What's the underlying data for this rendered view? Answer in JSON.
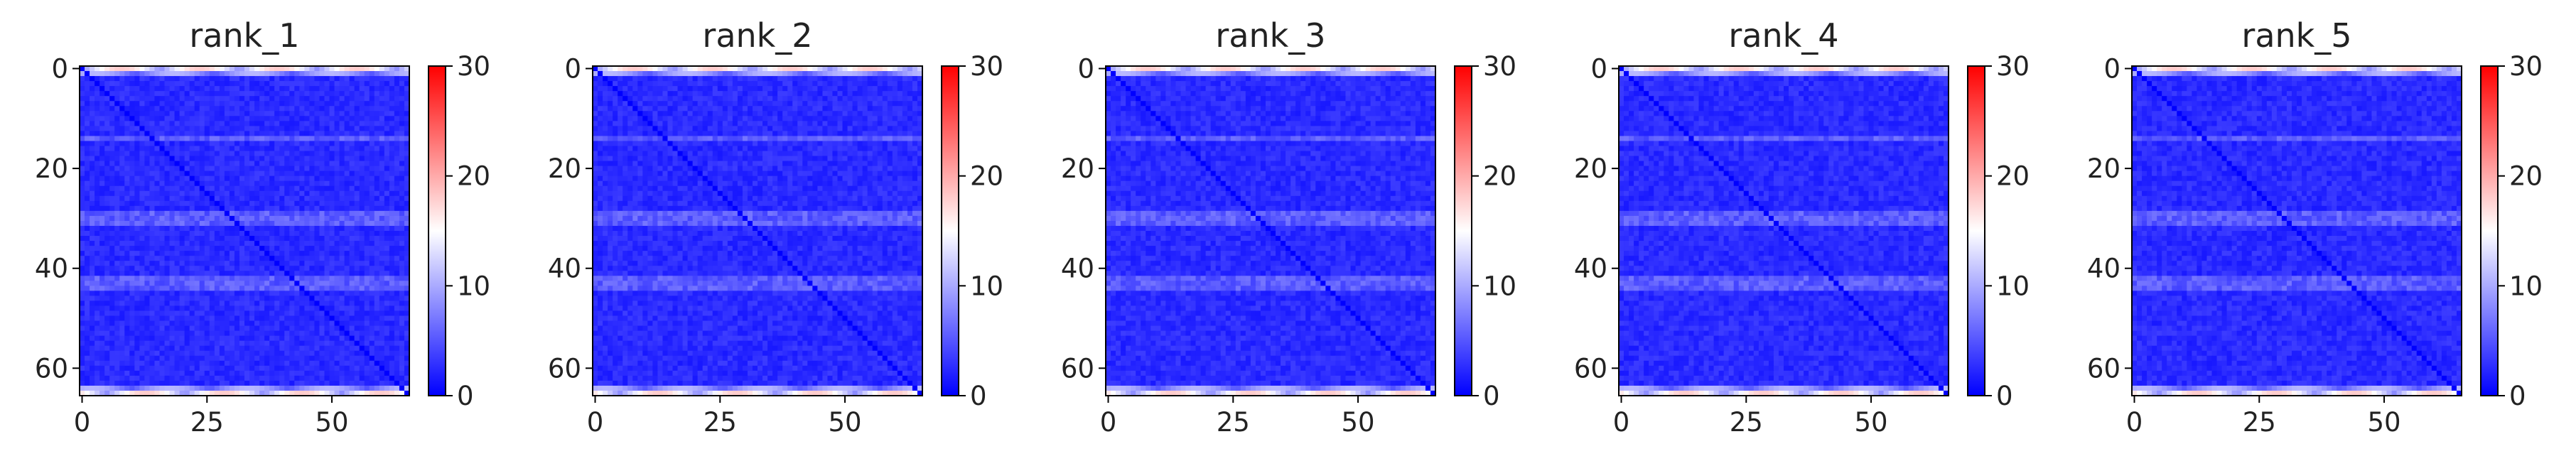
{
  "chart_data": [
    {
      "type": "heatmap",
      "title": "rank_1",
      "matrix_size": 66,
      "xticks": [
        0,
        25,
        50
      ],
      "yticks": [
        0,
        20,
        40,
        60
      ],
      "colorbar": {
        "ticks": [
          0,
          10,
          20,
          30
        ],
        "vmin": 0,
        "vmax": 30,
        "colormap": "bwr"
      },
      "values_summary": {
        "background": 2.5,
        "diagonal": 0,
        "bright_rows": [
          0,
          1,
          64,
          65
        ],
        "bright_row_peak": 18,
        "banded_rows": [
          14,
          29,
          30,
          31,
          42,
          43,
          44
        ],
        "banded_row_level": 7
      }
    },
    {
      "type": "heatmap",
      "title": "rank_2",
      "matrix_size": 66,
      "xticks": [
        0,
        25,
        50
      ],
      "yticks": [
        0,
        20,
        40,
        60
      ],
      "colorbar": {
        "ticks": [
          0,
          10,
          20,
          30
        ],
        "vmin": 0,
        "vmax": 30,
        "colormap": "bwr"
      },
      "values_summary": {
        "background": 2.5,
        "diagonal": 0,
        "bright_rows": [
          0,
          1,
          64,
          65
        ],
        "bright_row_peak": 18,
        "banded_rows": [
          14,
          29,
          30,
          31,
          42,
          43,
          44
        ],
        "banded_row_level": 7
      }
    },
    {
      "type": "heatmap",
      "title": "rank_3",
      "matrix_size": 66,
      "xticks": [
        0,
        25,
        50
      ],
      "yticks": [
        0,
        20,
        40,
        60
      ],
      "colorbar": {
        "ticks": [
          0,
          10,
          20,
          30
        ],
        "vmin": 0,
        "vmax": 30,
        "colormap": "bwr"
      },
      "values_summary": {
        "background": 2.5,
        "diagonal": 0,
        "bright_rows": [
          0,
          1,
          64,
          65
        ],
        "bright_row_peak": 18,
        "banded_rows": [
          14,
          29,
          30,
          31,
          42,
          43,
          44
        ],
        "banded_row_level": 7
      }
    },
    {
      "type": "heatmap",
      "title": "rank_4",
      "matrix_size": 66,
      "xticks": [
        0,
        25,
        50
      ],
      "yticks": [
        0,
        20,
        40,
        60
      ],
      "colorbar": {
        "ticks": [
          0,
          10,
          20,
          30
        ],
        "vmin": 0,
        "vmax": 30,
        "colormap": "bwr"
      },
      "values_summary": {
        "background": 2.5,
        "diagonal": 0,
        "bright_rows": [
          0,
          1,
          64,
          65
        ],
        "bright_row_peak": 18,
        "banded_rows": [
          14,
          29,
          30,
          31,
          42,
          43,
          44
        ],
        "banded_row_level": 7
      }
    },
    {
      "type": "heatmap",
      "title": "rank_5",
      "matrix_size": 66,
      "xticks": [
        0,
        25,
        50
      ],
      "yticks": [
        0,
        20,
        40,
        60
      ],
      "colorbar": {
        "ticks": [
          0,
          10,
          20,
          30
        ],
        "vmin": 0,
        "vmax": 30,
        "colormap": "bwr"
      },
      "values_summary": {
        "background": 2.5,
        "diagonal": 0,
        "bright_rows": [
          0,
          1,
          64,
          65
        ],
        "bright_row_peak": 18,
        "banded_rows": [
          14,
          29,
          30,
          31,
          42,
          43,
          44
        ],
        "banded_row_level": 7
      }
    }
  ]
}
